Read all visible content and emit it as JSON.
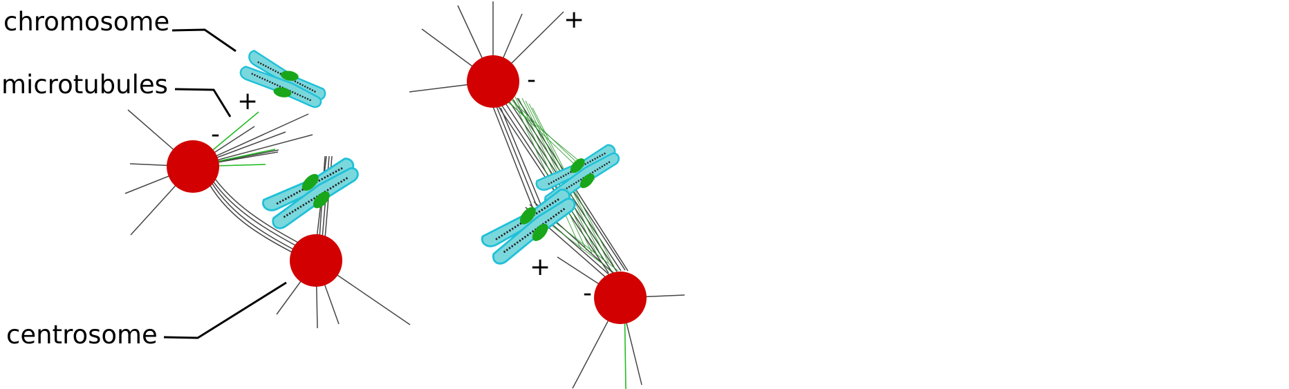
{
  "labels": {
    "chromosome": "chromosome",
    "microtubules": "microtubules",
    "centrosome": "centrosome"
  },
  "signs": {
    "plus": "+",
    "minus": "-"
  },
  "colors": {
    "centrosome": "#d20000",
    "chromosome_fill": "#7ad8dd",
    "chromosome_outline": "#20c0d8",
    "kinetochore": "#1aa61a",
    "microtubule": "#444444",
    "kinetochore_microtubule": "#22bb22"
  }
}
